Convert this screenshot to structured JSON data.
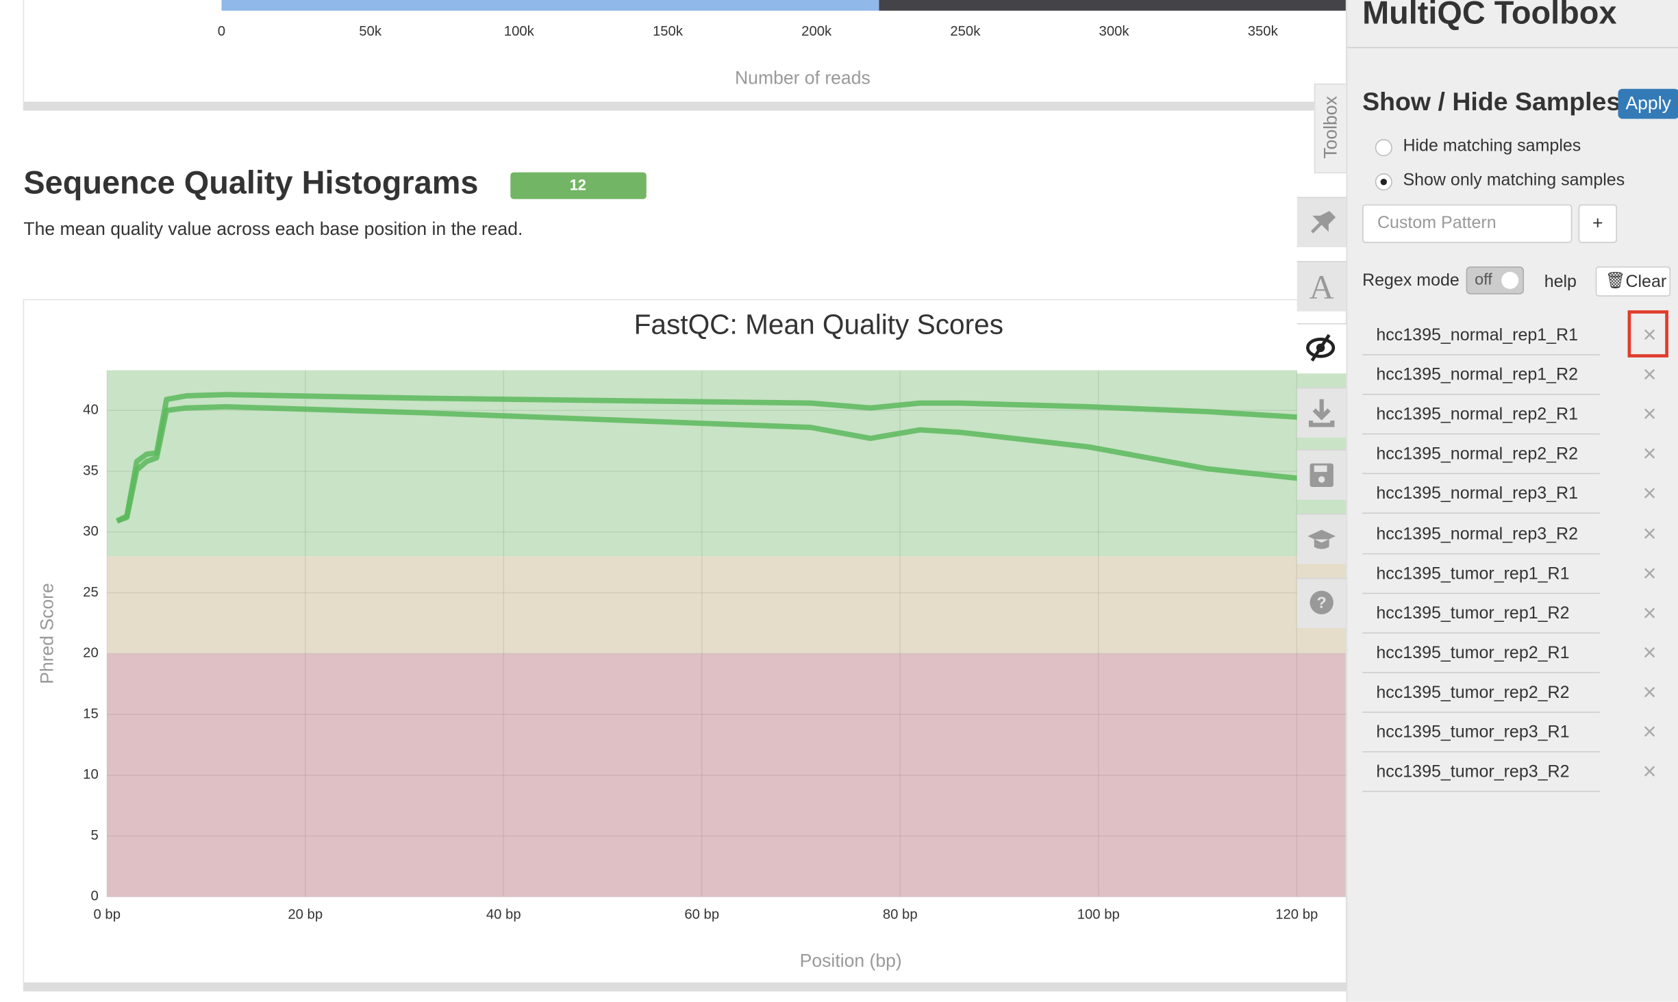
{
  "chart_data": [
    {
      "type": "bar",
      "orientation": "horizontal",
      "stacked": true,
      "categories": [
        null
      ],
      "series": [
        {
          "color": "#90b8e8",
          "values": [
            221000
          ]
        },
        {
          "color": "#434348",
          "values": [
            157000
          ]
        }
      ],
      "xlim": [
        0,
        378000
      ],
      "xticks": [
        0,
        {
          "value": 50000,
          "label": "50k"
        },
        {
          "value": 100000,
          "label": "100k"
        },
        {
          "value": 150000,
          "label": "150k"
        },
        {
          "value": 200000,
          "label": "200k"
        },
        {
          "value": 250000,
          "label": "250k"
        },
        {
          "value": 300000,
          "label": "300k"
        },
        {
          "value": 350000,
          "label": "350k"
        }
      ],
      "xlabel": "Number of reads"
    },
    {
      "type": "line",
      "title": "FastQC: Mean Quality Scores",
      "xlabel": "Position (bp)",
      "ylabel": "Phred Score",
      "x": [
        1,
        2,
        3,
        4,
        5,
        6,
        8,
        12,
        32,
        71,
        77,
        82,
        86,
        99,
        111,
        125
      ],
      "series": [
        {
          "color": "#5cb85c",
          "values": [
            30.9,
            31.3,
            35.8,
            36.4,
            36.5,
            40.9,
            41.2,
            41.3,
            41.0,
            40.6,
            40.2,
            40.6,
            40.6,
            40.3,
            39.9,
            39.2
          ]
        },
        {
          "color": "#5cb85c",
          "values": [
            30.9,
            31.2,
            35.1,
            35.8,
            36.1,
            40.0,
            40.2,
            40.3,
            39.8,
            38.6,
            37.7,
            38.4,
            38.2,
            37.0,
            35.2,
            34.0
          ]
        }
      ],
      "xlim": [
        0,
        125
      ],
      "ylim": [
        0,
        43.3
      ],
      "xticks": [
        {
          "value": 0,
          "label": "0 bp"
        },
        {
          "value": 20,
          "label": "20 bp"
        },
        {
          "value": 40,
          "label": "40 bp"
        },
        {
          "value": 60,
          "label": "60 bp"
        },
        {
          "value": 80,
          "label": "80 bp"
        },
        {
          "value": 100,
          "label": "100 bp"
        },
        {
          "value": 120,
          "label": "120 bp"
        }
      ],
      "yticks": [
        0,
        5,
        10,
        15,
        20,
        25,
        30,
        35,
        40
      ],
      "grid": true,
      "bands": [
        {
          "from": 28,
          "to": 43.3,
          "color": "#c8e3c5"
        },
        {
          "from": 20,
          "to": 28,
          "color": "#e5dcc9"
        },
        {
          "from": 0,
          "to": 20,
          "color": "#dfc1c5"
        }
      ]
    }
  ],
  "section": {
    "title": "Sequence Quality Histograms",
    "badge": 12,
    "description": "The mean quality value across each base position in the read."
  },
  "toolbox": {
    "tab": "Toolbox",
    "title": "MultiQC Toolbox",
    "heading": "Show / Hide Samples",
    "apply": "Apply",
    "options": [
      "Hide matching samples",
      "Show only matching samples"
    ],
    "selected": 1,
    "placeholder": "Custom Pattern",
    "add": "+",
    "regex_label": "Regex mode",
    "regex_state": "off",
    "help": "help",
    "clear": "Clear",
    "samples": [
      "hcc1395_normal_rep1_R1",
      "hcc1395_normal_rep1_R2",
      "hcc1395_normal_rep2_R1",
      "hcc1395_normal_rep2_R2",
      "hcc1395_normal_rep3_R1",
      "hcc1395_normal_rep3_R2",
      "hcc1395_tumor_rep1_R1",
      "hcc1395_tumor_rep1_R2",
      "hcc1395_tumor_rep2_R1",
      "hcc1395_tumor_rep2_R2",
      "hcc1395_tumor_rep3_R1",
      "hcc1395_tumor_rep3_R2"
    ]
  }
}
